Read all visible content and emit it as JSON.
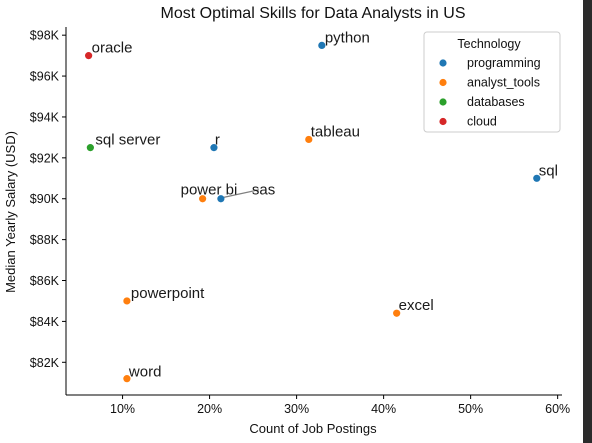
{
  "chart_data": {
    "type": "scatter",
    "title": "Most Optimal Skills for Data Analysts in US",
    "xlabel": "Count of Job Postings",
    "ylabel": "Median Yearly Salary (USD)",
    "xlim": [
      3.5,
      60.5
    ],
    "ylim": [
      80400,
      98400
    ],
    "x_unit": "%",
    "xticks": [
      10,
      20,
      30,
      40,
      50,
      60
    ],
    "xtick_labels": [
      "10%",
      "20%",
      "30%",
      "40%",
      "50%",
      "60%"
    ],
    "yticks": [
      82000,
      84000,
      86000,
      88000,
      90000,
      92000,
      94000,
      96000,
      98000
    ],
    "ytick_labels": [
      "$82K",
      "$84K",
      "$86K",
      "$88K",
      "$90K",
      "$92K",
      "$94K",
      "$96K",
      "$98K"
    ],
    "grid": false,
    "legend": {
      "title": "Technology",
      "placement": "top-right",
      "entries": [
        {
          "name": "programming",
          "color": "#1f77b4"
        },
        {
          "name": "analyst_tools",
          "color": "#ff7f0e"
        },
        {
          "name": "databases",
          "color": "#2ca02c"
        },
        {
          "name": "cloud",
          "color": "#d62728"
        }
      ]
    },
    "points": [
      {
        "label": "python",
        "x": 32.9,
        "y": 97500,
        "technology": "programming"
      },
      {
        "label": "oracle",
        "x": 6.1,
        "y": 97000,
        "technology": "cloud"
      },
      {
        "label": "tableau",
        "x": 31.4,
        "y": 92900,
        "technology": "analyst_tools"
      },
      {
        "label": "sql server",
        "x": 6.3,
        "y": 92500,
        "technology": "databases"
      },
      {
        "label": "r",
        "x": 20.5,
        "y": 92500,
        "technology": "programming"
      },
      {
        "label": "sql",
        "x": 57.6,
        "y": 91000,
        "technology": "programming"
      },
      {
        "label": "power bi",
        "x": 19.2,
        "y": 90000,
        "technology": "analyst_tools"
      },
      {
        "label": "sas",
        "x": 21.3,
        "y": 90000,
        "technology": "programming"
      },
      {
        "label": "powerpoint",
        "x": 10.5,
        "y": 85000,
        "technology": "analyst_tools"
      },
      {
        "label": "excel",
        "x": 41.5,
        "y": 84400,
        "technology": "analyst_tools"
      },
      {
        "label": "word",
        "x": 10.5,
        "y": 81200,
        "technology": "analyst_tools"
      }
    ]
  }
}
